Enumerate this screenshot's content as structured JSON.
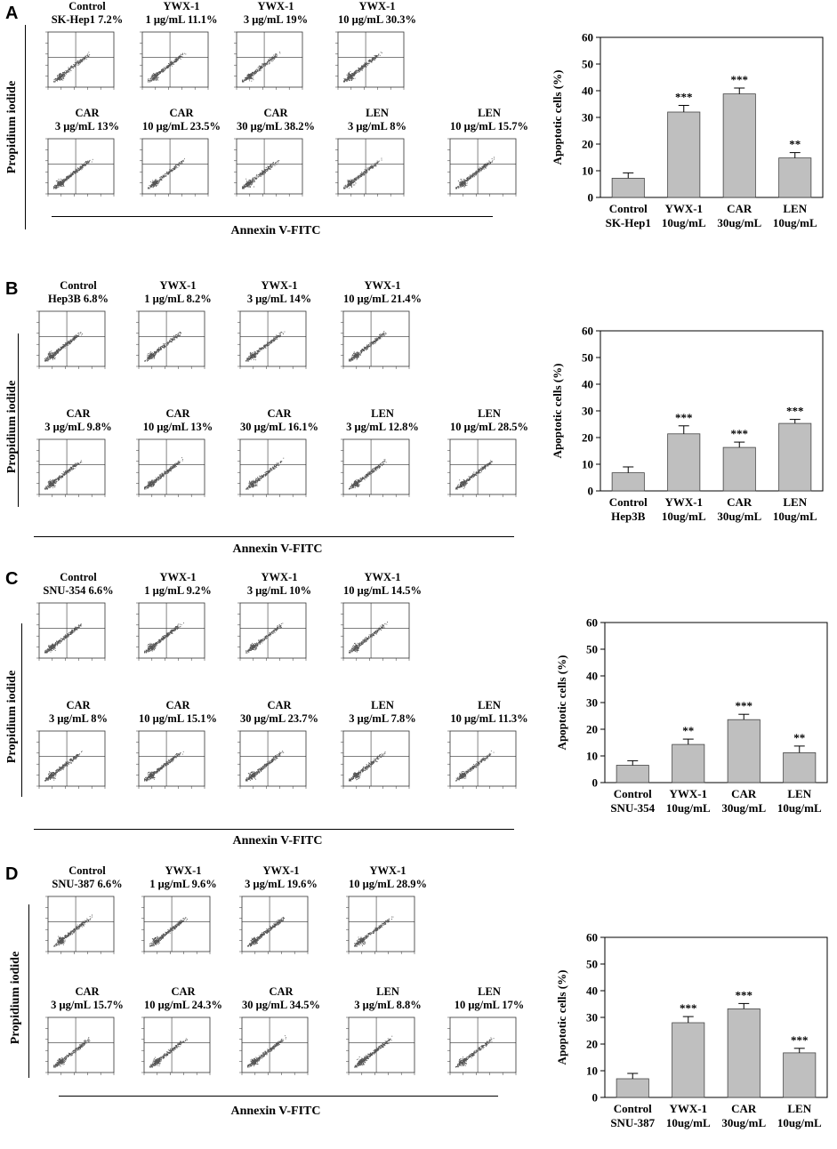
{
  "panels": [
    {
      "label": "A",
      "flow_ylabel": "Propidium iodide",
      "flow_xlabel": "Annexin V-FITC",
      "plots": [
        {
          "line1": "Control",
          "line2": "SK-Hep1 7.2%"
        },
        {
          "line1": "YWX-1",
          "line2": "1 μg/mL 11.1%"
        },
        {
          "line1": "YWX-1",
          "line2": "3 μg/mL 19%"
        },
        {
          "line1": "YWX-1",
          "line2": "10 μg/mL 30.3%"
        },
        {
          "line1": "CAR",
          "line2": "3 μg/mL 13%"
        },
        {
          "line1": "CAR",
          "line2": "10 μg/mL 23.5%"
        },
        {
          "line1": "CAR",
          "line2": "30 μg/mL 38.2%"
        },
        {
          "line1": "LEN",
          "line2": "3 μg/mL 8%"
        },
        {
          "line1": "LEN",
          "line2": "10 μg/mL 15.7%"
        }
      ]
    },
    {
      "label": "B",
      "flow_ylabel": "Propidium iodide",
      "flow_xlabel": "Annexin V-FITC",
      "plots": [
        {
          "line1": "Control",
          "line2": "Hep3B 6.8%"
        },
        {
          "line1": "YWX-1",
          "line2": "1 μg/mL 8.2%"
        },
        {
          "line1": "YWX-1",
          "line2": "3 μg/mL 14%"
        },
        {
          "line1": "YWX-1",
          "line2": "10 μg/mL 21.4%"
        },
        {
          "line1": "CAR",
          "line2": "3 μg/mL 9.8%"
        },
        {
          "line1": "CAR",
          "line2": "10 μg/mL 13%"
        },
        {
          "line1": "CAR",
          "line2": "30 μg/mL 16.1%"
        },
        {
          "line1": "LEN",
          "line2": "3 μg/mL 12.8%"
        },
        {
          "line1": "LEN",
          "line2": "10 μg/mL 28.5%"
        }
      ]
    },
    {
      "label": "C",
      "flow_ylabel": "Propidium iodide",
      "flow_xlabel": "Annexin V-FITC",
      "plots": [
        {
          "line1": "Control",
          "line2": "SNU-354 6.6%"
        },
        {
          "line1": "YWX-1",
          "line2": "1 μg/mL 9.2%"
        },
        {
          "line1": "YWX-1",
          "line2": "3 μg/mL 10%"
        },
        {
          "line1": "YWX-1",
          "line2": "10 μg/mL 14.5%"
        },
        {
          "line1": "CAR",
          "line2": "3 μg/mL 8%"
        },
        {
          "line1": "CAR",
          "line2": "10 μg/mL 15.1%"
        },
        {
          "line1": "CAR",
          "line2": "30 μg/mL 23.7%"
        },
        {
          "line1": "LEN",
          "line2": "3 μg/mL 7.8%"
        },
        {
          "line1": "LEN",
          "line2": "10 μg/mL 11.3%"
        }
      ]
    },
    {
      "label": "D",
      "flow_ylabel": "Propidium iodide",
      "flow_xlabel": "Annexin V-FITC",
      "plots": [
        {
          "line1": "Control",
          "line2": "SNU-387 6.6%"
        },
        {
          "line1": "YWX-1",
          "line2": "1 μg/mL 9.6%"
        },
        {
          "line1": "YWX-1",
          "line2": "3 μg/mL 19.6%"
        },
        {
          "line1": "YWX-1",
          "line2": "10 μg/mL 28.9%"
        },
        {
          "line1": "CAR",
          "line2": "3 μg/mL 15.7%"
        },
        {
          "line1": "CAR",
          "line2": "10 μg/mL 24.3%"
        },
        {
          "line1": "CAR",
          "line2": "30 μg/mL 34.5%"
        },
        {
          "line1": "LEN",
          "line2": "3 μg/mL 8.8%"
        },
        {
          "line1": "LEN",
          "line2": "10 μg/mL 17%"
        }
      ]
    }
  ],
  "chart_data": [
    {
      "type": "bar",
      "panel": "A",
      "categories": [
        [
          "Control",
          "SK-Hep1"
        ],
        [
          "YWX-1",
          "10ug/mL"
        ],
        [
          "CAR",
          "30ug/mL"
        ],
        [
          "LEN",
          "10ug/mL"
        ]
      ],
      "values": [
        7.2,
        32,
        38.8,
        14.8
      ],
      "errors": [
        2,
        2.5,
        2.2,
        2
      ],
      "significance": [
        "",
        "***",
        "***",
        "**"
      ],
      "ylabel": "Apoptotic cells (%)",
      "ylim": [
        0,
        60
      ],
      "yticks": [
        0,
        10,
        20,
        30,
        40,
        50,
        60
      ],
      "bar_color": "#bfbfbf"
    },
    {
      "type": "bar",
      "panel": "B",
      "categories": [
        [
          "Control",
          "Hep3B"
        ],
        [
          "YWX-1",
          "10ug/mL"
        ],
        [
          "CAR",
          "30ug/mL"
        ],
        [
          "LEN",
          "10ug/mL"
        ]
      ],
      "values": [
        6.8,
        21.4,
        16.3,
        25.3
      ],
      "errors": [
        2.2,
        3,
        2,
        1.5
      ],
      "significance": [
        "",
        "***",
        "***",
        "***"
      ],
      "ylabel": "Apoptotic cells (%)",
      "ylim": [
        0,
        60
      ],
      "yticks": [
        0,
        10,
        20,
        30,
        40,
        50,
        60
      ],
      "bar_color": "#bfbfbf"
    },
    {
      "type": "bar",
      "panel": "C",
      "categories": [
        [
          "Control",
          "SNU-354"
        ],
        [
          "YWX-1",
          "10ug/mL"
        ],
        [
          "CAR",
          "30ug/mL"
        ],
        [
          "LEN",
          "10ug/mL"
        ]
      ],
      "values": [
        6.5,
        14.3,
        23.6,
        11.2
      ],
      "errors": [
        1.7,
        2,
        2,
        2.5
      ],
      "significance": [
        "",
        "**",
        "***",
        "**"
      ],
      "ylabel": "Apoptotic cells (%)",
      "ylim": [
        0,
        60
      ],
      "yticks": [
        0,
        10,
        20,
        30,
        40,
        50,
        60
      ],
      "bar_color": "#bfbfbf"
    },
    {
      "type": "bar",
      "panel": "D",
      "categories": [
        [
          "Control",
          "SNU-387"
        ],
        [
          "YWX-1",
          "10ug/mL"
        ],
        [
          "CAR",
          "30ug/mL"
        ],
        [
          "LEN",
          "10ug/mL"
        ]
      ],
      "values": [
        7,
        28,
        33.2,
        16.7
      ],
      "errors": [
        2,
        2.3,
        2,
        1.7
      ],
      "significance": [
        "",
        "***",
        "***",
        "***"
      ],
      "ylabel": "Apoptotic cells (%)",
      "ylim": [
        0,
        60
      ],
      "yticks": [
        0,
        10,
        20,
        30,
        40,
        50,
        60
      ],
      "bar_color": "#bfbfbf"
    }
  ]
}
